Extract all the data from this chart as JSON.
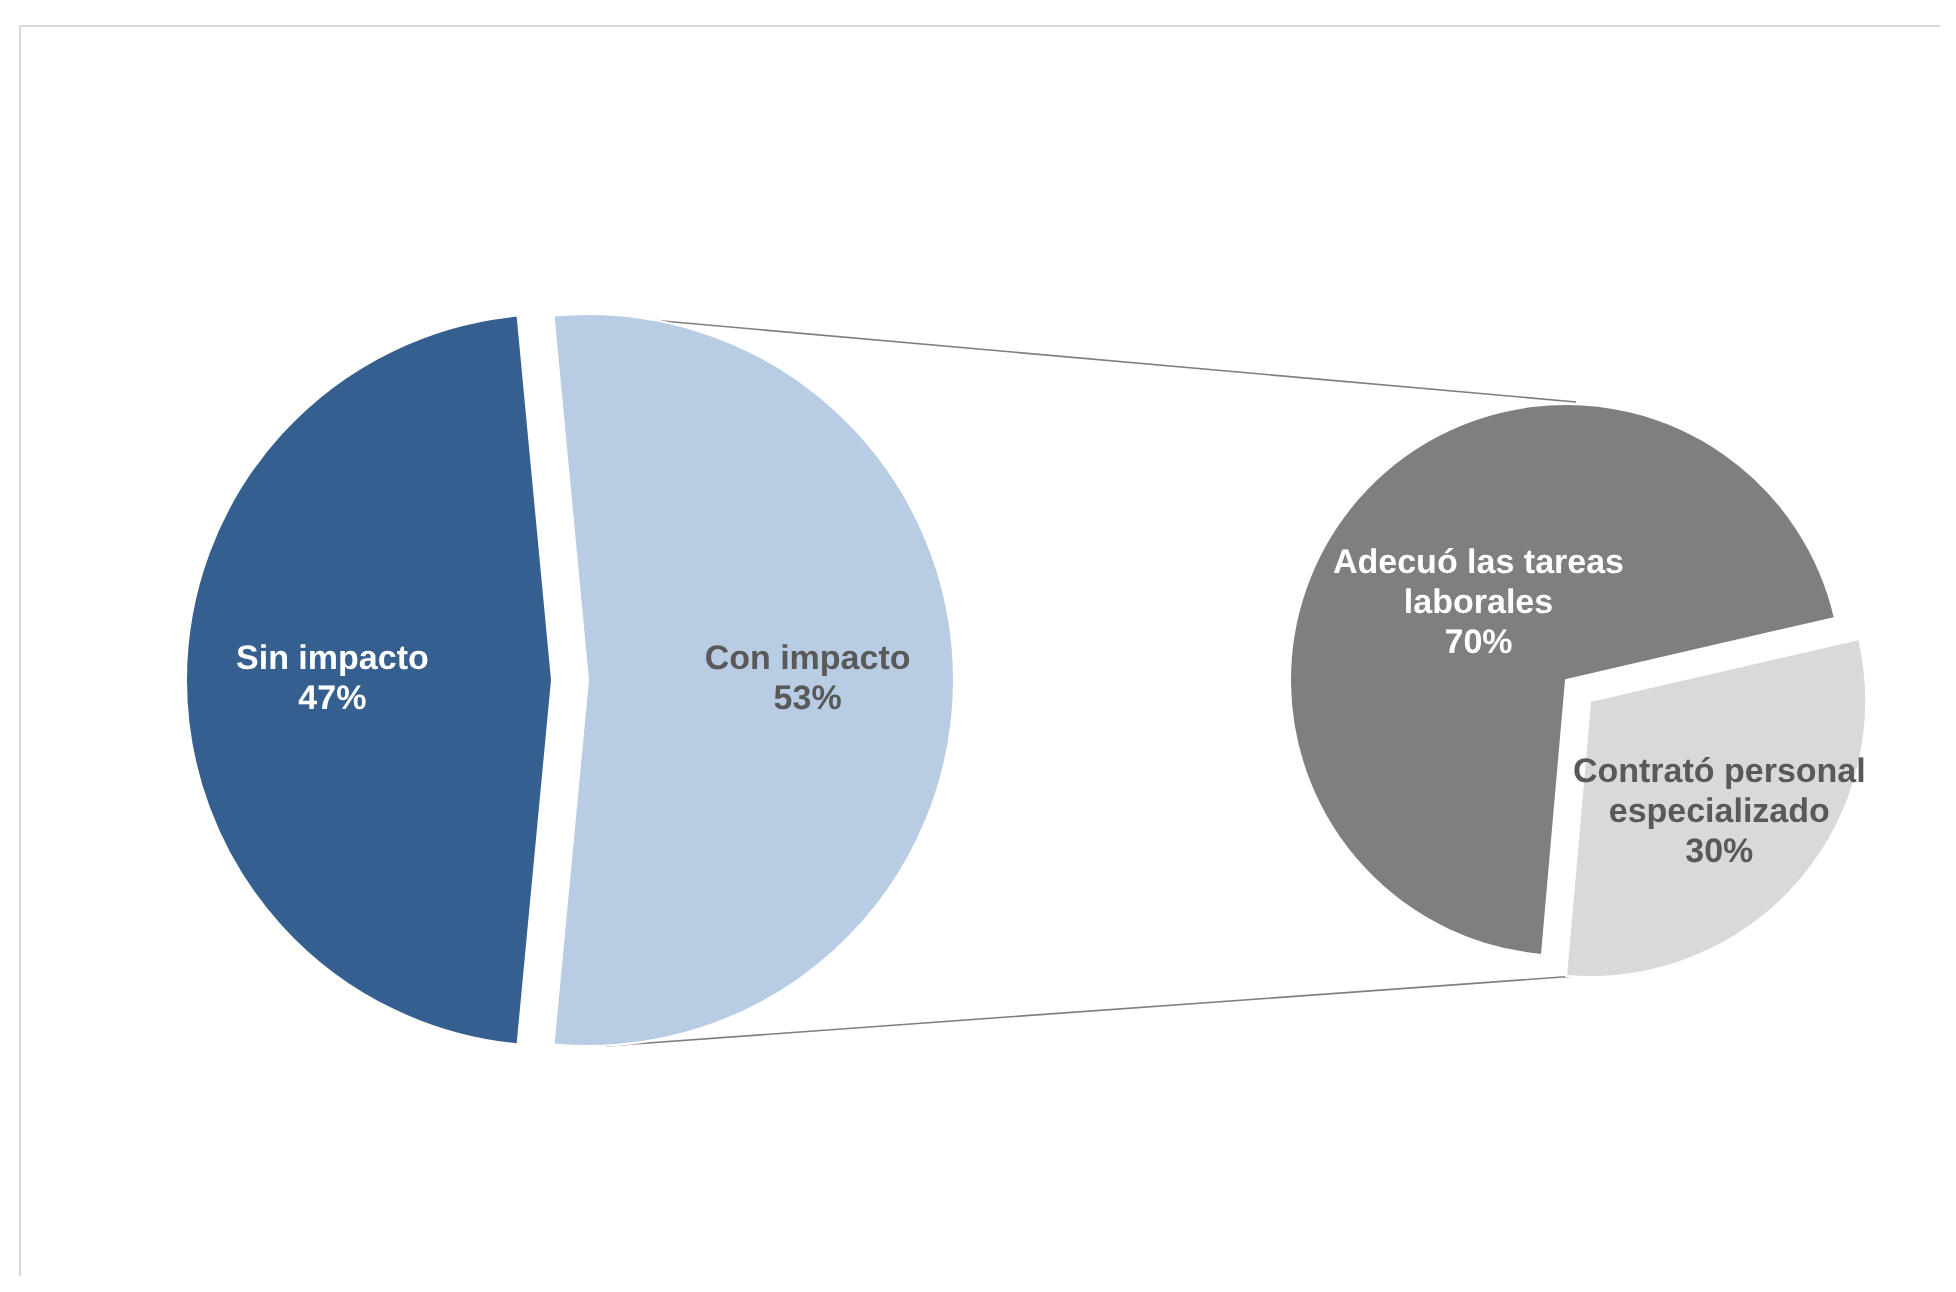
{
  "chart_data": [
    {
      "type": "pie",
      "categories": [
        "Sin impacto",
        "Con impacto"
      ],
      "values": [
        47,
        53
      ],
      "colors": [
        "#355f8f",
        "#b8cce4"
      ],
      "value_labels": [
        "47%",
        "53%"
      ]
    },
    {
      "type": "pie",
      "categories": [
        "Adecuó las tareas laborales",
        "Contrató personal especializado"
      ],
      "values": [
        70,
        30
      ],
      "colors": [
        "#7f7f7f",
        "#d9d9d9"
      ],
      "value_labels": [
        "70%",
        "30%"
      ]
    }
  ]
}
